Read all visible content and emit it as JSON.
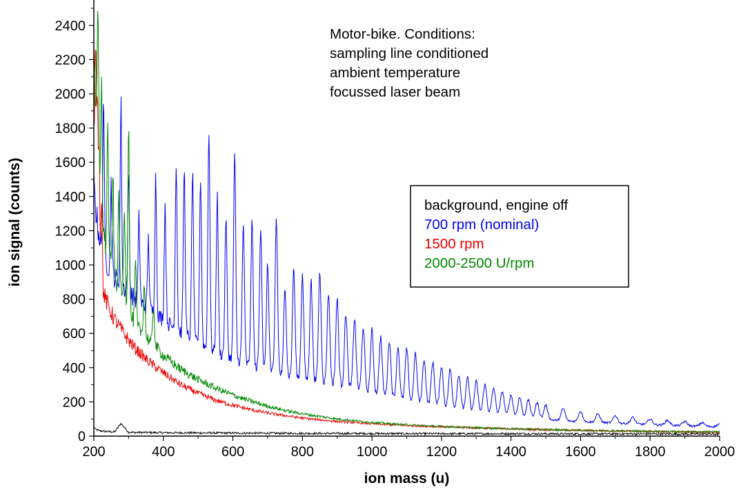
{
  "chart_data": {
    "type": "line",
    "title": "",
    "xlabel": "ion mass (u)",
    "ylabel": "ion signal (counts)",
    "xlim": [
      200,
      2000
    ],
    "ylim": [
      0,
      2500
    ],
    "x_ticks": [
      200,
      400,
      600,
      800,
      1000,
      1200,
      1400,
      1600,
      1800,
      2000
    ],
    "y_ticks": [
      0,
      200,
      400,
      600,
      800,
      1000,
      1200,
      1400,
      1600,
      1800,
      2000,
      2200,
      2400
    ],
    "x_tick_labels": [
      "200",
      "400",
      "600",
      "800",
      "1000",
      "1200",
      "1400",
      "1600",
      "1800",
      "2000"
    ],
    "y_tick_labels": [
      "0",
      "200",
      "400",
      "600",
      "800",
      "1000",
      "1200",
      "1400",
      "1600",
      "1800",
      "2000",
      "2200",
      "2400"
    ],
    "grid": false,
    "legend_position": "center-right",
    "annotation": [
      "Motor-bike. Conditions:",
      "sampling line conditioned",
      "ambient temperature",
      "focussed laser beam"
    ],
    "series": [
      {
        "name": "background, engine off",
        "color": "#000000",
        "x": [
          200,
          205,
          215,
          230,
          260,
          278,
          300,
          400,
          600,
          800,
          1000,
          1200,
          1400,
          1600,
          1800,
          2000
        ],
        "y": [
          55,
          40,
          32,
          28,
          24,
          75,
          22,
          20,
          18,
          16,
          15,
          14,
          14,
          13,
          13,
          12
        ]
      },
      {
        "name": "700 rpm (nominal)",
        "color": "#0000ee",
        "x": [
          200,
          210,
          220,
          240,
          260,
          280,
          300,
          320,
          340,
          360,
          380,
          400,
          420,
          440,
          460,
          480,
          500,
          520,
          540,
          560,
          580,
          600,
          620,
          640,
          660,
          680,
          700,
          720,
          740,
          760,
          780,
          800,
          820,
          840,
          860,
          880,
          900,
          920,
          940,
          960,
          980,
          1000,
          1020,
          1040,
          1060,
          1080,
          1100,
          1120,
          1140,
          1160,
          1180,
          1200,
          1220,
          1240,
          1260,
          1280,
          1300,
          1320,
          1340,
          1360,
          1380,
          1400,
          1420,
          1440,
          1460,
          1480,
          1500,
          1550,
          1600,
          1650,
          1700,
          1750,
          1800,
          1850,
          1900,
          1950,
          2000
        ],
        "y": [
          1450,
          1250,
          1120,
          1000,
          930,
          880,
          840,
          800,
          770,
          740,
          710,
          680,
          650,
          620,
          595,
          570,
          545,
          520,
          500,
          480,
          465,
          450,
          435,
          420,
          405,
          392,
          380,
          370,
          360,
          350,
          342,
          335,
          328,
          320,
          312,
          305,
          300,
          292,
          282,
          272,
          262,
          252,
          242,
          232,
          222,
          212,
          202,
          195,
          188,
          181,
          174,
          167,
          161,
          155,
          149,
          143,
          137,
          131,
          126,
          121,
          117,
          113,
          109,
          105,
          102,
          99,
          96,
          90,
          85,
          80,
          76,
          72,
          68,
          64,
          60,
          57,
          54
        ],
        "peaks": [
          {
            "x": 228,
            "y": 2000
          },
          {
            "x": 250,
            "y": 1500
          },
          {
            "x": 278,
            "y": 1950
          },
          {
            "x": 300,
            "y": 1530
          },
          {
            "x": 330,
            "y": 1280
          },
          {
            "x": 357,
            "y": 1150
          },
          {
            "x": 378,
            "y": 1520
          },
          {
            "x": 405,
            "y": 1350
          },
          {
            "x": 437,
            "y": 1600
          },
          {
            "x": 460,
            "y": 1560
          },
          {
            "x": 484,
            "y": 1540
          },
          {
            "x": 507,
            "y": 1510
          },
          {
            "x": 531,
            "y": 1790
          },
          {
            "x": 555,
            "y": 1400
          },
          {
            "x": 580,
            "y": 1270
          },
          {
            "x": 605,
            "y": 1650
          },
          {
            "x": 630,
            "y": 1240
          },
          {
            "x": 655,
            "y": 1250
          },
          {
            "x": 680,
            "y": 1230
          },
          {
            "x": 700,
            "y": 1000
          },
          {
            "x": 725,
            "y": 1270
          },
          {
            "x": 750,
            "y": 880
          },
          {
            "x": 775,
            "y": 980
          },
          {
            "x": 800,
            "y": 940
          },
          {
            "x": 825,
            "y": 910
          },
          {
            "x": 850,
            "y": 960
          },
          {
            "x": 875,
            "y": 840
          },
          {
            "x": 900,
            "y": 800
          },
          {
            "x": 925,
            "y": 720
          },
          {
            "x": 950,
            "y": 690
          },
          {
            "x": 975,
            "y": 640
          },
          {
            "x": 1000,
            "y": 620
          },
          {
            "x": 1025,
            "y": 580
          },
          {
            "x": 1050,
            "y": 560
          },
          {
            "x": 1075,
            "y": 520
          },
          {
            "x": 1100,
            "y": 510
          },
          {
            "x": 1125,
            "y": 480
          },
          {
            "x": 1150,
            "y": 450
          },
          {
            "x": 1175,
            "y": 430
          },
          {
            "x": 1200,
            "y": 410
          },
          {
            "x": 1225,
            "y": 390
          },
          {
            "x": 1250,
            "y": 360
          },
          {
            "x": 1275,
            "y": 340
          },
          {
            "x": 1300,
            "y": 320
          },
          {
            "x": 1325,
            "y": 300
          },
          {
            "x": 1350,
            "y": 280
          },
          {
            "x": 1375,
            "y": 260
          },
          {
            "x": 1400,
            "y": 240
          },
          {
            "x": 1425,
            "y": 225
          },
          {
            "x": 1450,
            "y": 210
          },
          {
            "x": 1475,
            "y": 195
          },
          {
            "x": 1500,
            "y": 180
          },
          {
            "x": 1550,
            "y": 160
          },
          {
            "x": 1600,
            "y": 145
          },
          {
            "x": 1650,
            "y": 130
          },
          {
            "x": 1700,
            "y": 120
          },
          {
            "x": 1750,
            "y": 110
          },
          {
            "x": 1800,
            "y": 100
          },
          {
            "x": 1850,
            "y": 92
          },
          {
            "x": 1900,
            "y": 85
          },
          {
            "x": 1950,
            "y": 78
          },
          {
            "x": 2000,
            "y": 70
          }
        ]
      },
      {
        "name": "1500 rpm",
        "color": "#ee0000",
        "x": [
          200,
          203,
          207,
          212,
          220,
          230,
          245,
          260,
          280,
          300,
          320,
          350,
          380,
          400,
          450,
          500,
          550,
          600,
          650,
          700,
          800,
          900,
          1000,
          1100,
          1200,
          1300,
          1400,
          1500,
          1600,
          1700,
          1800,
          1900,
          2000
        ],
        "y": [
          1700,
          1400,
          1150,
          1000,
          900,
          820,
          740,
          680,
          620,
          560,
          510,
          450,
          400,
          370,
          300,
          250,
          210,
          180,
          155,
          135,
          105,
          85,
          72,
          62,
          55,
          48,
          42,
          37,
          33,
          30,
          27,
          25,
          23
        ],
        "peaks": [
          {
            "x": 205,
            "y": 2300
          },
          {
            "x": 210,
            "y": 1950
          },
          {
            "x": 215,
            "y": 1700
          },
          {
            "x": 222,
            "y": 1400
          }
        ]
      },
      {
        "name": "2000-2500 U/rpm",
        "color": "#008800",
        "x": [
          200,
          205,
          210,
          220,
          230,
          240,
          260,
          280,
          300,
          320,
          340,
          360,
          380,
          400,
          450,
          500,
          550,
          600,
          650,
          700,
          750,
          800,
          900,
          1000,
          1100,
          1200,
          1300,
          1400,
          1500,
          1600,
          1700,
          1800,
          1900,
          2000
        ],
        "y": [
          2400,
          2000,
          1600,
          1300,
          1150,
          1050,
          920,
          820,
          720,
          650,
          600,
          560,
          520,
          470,
          390,
          330,
          280,
          240,
          205,
          175,
          150,
          130,
          100,
          80,
          66,
          56,
          49,
          43,
          38,
          34,
          31,
          28,
          26,
          24
        ],
        "peaks": [
          {
            "x": 212,
            "y": 2500
          },
          {
            "x": 222,
            "y": 2100
          },
          {
            "x": 240,
            "y": 1800
          },
          {
            "x": 255,
            "y": 1500
          },
          {
            "x": 272,
            "y": 1400
          },
          {
            "x": 288,
            "y": 1350
          },
          {
            "x": 300,
            "y": 1830
          },
          {
            "x": 320,
            "y": 1000
          },
          {
            "x": 345,
            "y": 900
          },
          {
            "x": 372,
            "y": 760
          }
        ]
      }
    ]
  }
}
